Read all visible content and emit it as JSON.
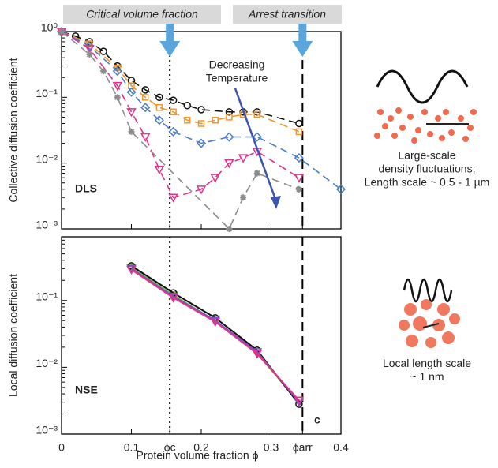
{
  "banners": [
    "Critical volume fraction",
    "Arrest transition"
  ],
  "x_label": "Protein volume fraction  ϕ",
  "chart_data": [
    {
      "type": "line",
      "y_label": "Collective diffusion coefficient",
      "label": "DLS",
      "annotation": "Decreasing Temperature",
      "log_y": true,
      "xlim": [
        0,
        0.4
      ],
      "ylim": [
        0.001,
        1
      ],
      "yticks": [
        {
          "value": 1,
          "label": "10⁰"
        },
        {
          "value": 0.1,
          "label": "10⁻¹"
        },
        {
          "value": 0.01,
          "label": "10⁻²"
        },
        {
          "value": 0.001,
          "label": "10⁻³"
        }
      ],
      "series": [
        {
          "color": "#111111",
          "marker": "circle",
          "x": [
            0,
            0.02,
            0.04,
            0.06,
            0.08,
            0.1,
            0.12,
            0.14,
            0.16,
            0.18,
            0.2,
            0.24,
            0.26,
            0.28,
            0.34
          ],
          "values": [
            1,
            0.85,
            0.7,
            0.5,
            0.3,
            0.18,
            0.13,
            0.1,
            0.09,
            0.075,
            0.065,
            0.06,
            0.06,
            0.06,
            0.04
          ]
        },
        {
          "color": "#f0962e",
          "marker": "square",
          "x": [
            0,
            0.04,
            0.08,
            0.1,
            0.12,
            0.14,
            0.16,
            0.18,
            0.2,
            0.22,
            0.24,
            0.26,
            0.28,
            0.34
          ],
          "values": [
            1,
            0.65,
            0.28,
            0.15,
            0.1,
            0.07,
            0.06,
            0.045,
            0.04,
            0.045,
            0.05,
            0.055,
            0.055,
            0.03
          ]
        },
        {
          "color": "#4a7cc7",
          "marker": "diamond",
          "x": [
            0,
            0.04,
            0.08,
            0.1,
            0.12,
            0.14,
            0.16,
            0.2,
            0.24,
            0.28,
            0.34,
            0.4
          ],
          "values": [
            1,
            0.6,
            0.25,
            0.12,
            0.07,
            0.045,
            0.03,
            0.02,
            0.025,
            0.025,
            0.012,
            0.004
          ]
        },
        {
          "color": "#e0338a",
          "marker": "triangle",
          "x": [
            0,
            0.04,
            0.08,
            0.1,
            0.12,
            0.14,
            0.16,
            0.2,
            0.22,
            0.24,
            0.26,
            0.28,
            0.34
          ],
          "values": [
            1,
            0.55,
            0.15,
            0.06,
            0.025,
            0.008,
            0.003,
            0.004,
            0.006,
            0.01,
            0.012,
            0.015,
            0.006
          ]
        },
        {
          "color": "#8c8c8c",
          "marker": "star",
          "x": [
            0,
            0.04,
            0.06,
            0.08,
            0.1,
            0.24,
            0.26,
            0.28,
            0.34
          ],
          "values": [
            1,
            0.45,
            0.25,
            0.1,
            0.03,
            0.001,
            0.003,
            0.007,
            0.004
          ]
        }
      ]
    },
    {
      "type": "line",
      "y_label": "Local diffusion coefficient",
      "label": "NSE",
      "panel_letter": "c",
      "log_y": true,
      "xlim": [
        0,
        0.4
      ],
      "xticks": [
        0,
        0.1,
        {
          "value": 0.155,
          "label": "ϕc"
        },
        0.2,
        0.3,
        {
          "value": 0.345,
          "label": "ϕarr"
        },
        0.4
      ],
      "ylim": [
        0.001,
        0.9
      ],
      "yticks": [
        {
          "value": 0.1,
          "label": "10⁻¹"
        },
        {
          "value": 0.01,
          "label": "10⁻²"
        },
        {
          "value": 0.001,
          "label": "10⁻³"
        }
      ],
      "series": [
        {
          "color": "#6abf3a",
          "marker": "triangle",
          "x": [
            0.1,
            0.16,
            0.22,
            0.28,
            0.34
          ],
          "values": [
            0.31,
            0.12,
            0.05,
            0.016,
            0.003
          ]
        },
        {
          "color": "#111111",
          "marker": "circle",
          "x": [
            0.1,
            0.16,
            0.22,
            0.28,
            0.34
          ],
          "values": [
            0.33,
            0.13,
            0.055,
            0.018,
            0.0028
          ]
        },
        {
          "color": "#7b4fc2",
          "marker": "triangle",
          "x": [
            0.1,
            0.16,
            0.22,
            0.28,
            0.34
          ],
          "values": [
            0.3,
            0.115,
            0.05,
            0.017,
            0.003
          ]
        },
        {
          "color": "#e0338a",
          "marker": "triangle",
          "x": [
            0.1,
            0.16,
            0.22,
            0.28,
            0.34
          ],
          "values": [
            0.29,
            0.11,
            0.048,
            0.016,
            0.0032
          ]
        }
      ]
    }
  ],
  "captions": [
    "Large-scale\ndensity fluctuations;\nLength scale ~ 0.5 - 1 µm",
    "Local length scale\n~ 1 nm"
  ]
}
